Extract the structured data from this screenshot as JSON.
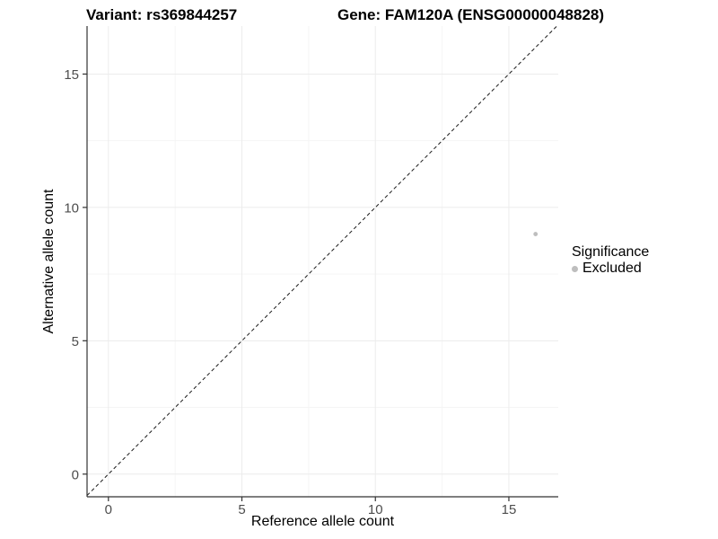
{
  "chart_data": {
    "type": "scatter",
    "title_left": "Variant: rs369844257",
    "title_right": "Gene: FAM120A (ENSG00000048828)",
    "xlabel": "Reference allele count",
    "ylabel": "Alternative allele count",
    "xlim": [
      -0.8,
      16.85
    ],
    "ylim": [
      -0.85,
      16.8
    ],
    "xticks": [
      0,
      5,
      10,
      15
    ],
    "yticks": [
      0,
      5,
      10,
      15
    ],
    "minor_xticks": [
      2.5,
      7.5,
      12.5
    ],
    "minor_yticks": [
      2.5,
      7.5,
      12.5
    ],
    "grid": true,
    "identity_line": {
      "style": "dashed",
      "color": "#1a1a1a",
      "slope": 1,
      "intercept": 0
    },
    "points": [
      {
        "x": 16,
        "y": 9,
        "series": "Excluded",
        "color": "#bebebe"
      }
    ],
    "legend": {
      "position": "right",
      "title": "Significance",
      "items": [
        {
          "label": "Excluded",
          "marker_color": "#bebebe"
        }
      ]
    },
    "colors": {
      "background": "#ffffff",
      "grid_major": "#ececec",
      "grid_minor": "#f5f5f5",
      "axis_line": "#333333",
      "tick_mark": "#333333",
      "tick_text": "#4d4d4d",
      "point": "#bebebe"
    }
  }
}
